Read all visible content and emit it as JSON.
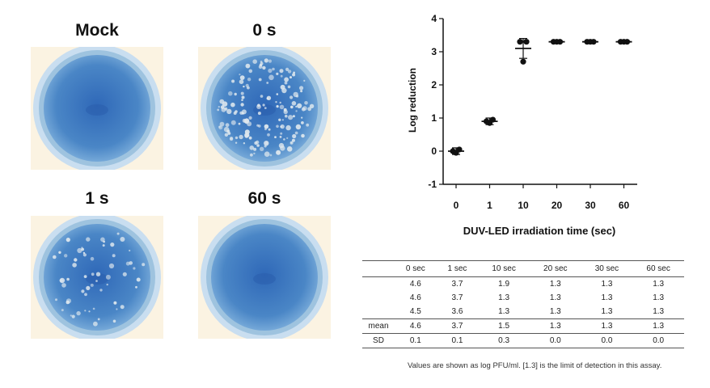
{
  "wells": [
    {
      "label": "Mock",
      "plaques": 0
    },
    {
      "label": "0 s",
      "plaques": 160
    },
    {
      "label": "1 s",
      "plaques": 60
    },
    {
      "label": "60 s",
      "plaques": 0
    }
  ],
  "colors": {
    "well_blue": "#4a86c6",
    "plaque": "#dfe8ee",
    "rim": "#9ec3df"
  },
  "chart_data": {
    "type": "scatter",
    "xlabel": "DUV-LED irradiation time (sec)",
    "ylabel": "Log reduction",
    "categories": [
      "0",
      "1",
      "10",
      "20",
      "30",
      "60"
    ],
    "ylim": [
      -1,
      4
    ],
    "yticks": [
      -1,
      0,
      1,
      2,
      3,
      4
    ],
    "points": [
      [
        0.0,
        0.05,
        -0.05
      ],
      [
        0.9,
        0.95,
        0.85
      ],
      [
        3.3,
        3.3,
        2.7
      ],
      [
        3.3,
        3.3,
        3.3
      ],
      [
        3.3,
        3.3,
        3.3
      ],
      [
        3.3,
        3.3,
        3.3
      ]
    ],
    "mean": [
      0.0,
      0.9,
      3.1,
      3.3,
      3.3,
      3.3
    ],
    "error": [
      0.1,
      0.1,
      0.3,
      0.0,
      0.0,
      0.0
    ]
  },
  "table": {
    "columns": [
      "",
      "0 sec",
      "1 sec",
      "10 sec",
      "20 sec",
      "30 sec",
      "60 sec"
    ],
    "rows": [
      [
        "",
        "4.6",
        "3.7",
        "1.9",
        "1.3",
        "1.3",
        "1.3"
      ],
      [
        "",
        "4.6",
        "3.7",
        "1.3",
        "1.3",
        "1.3",
        "1.3"
      ],
      [
        "",
        "4.5",
        "3.6",
        "1.3",
        "1.3",
        "1.3",
        "1.3"
      ],
      [
        "mean",
        "4.6",
        "3.7",
        "1.5",
        "1.3",
        "1.3",
        "1.3"
      ],
      [
        "SD",
        "0.1",
        "0.1",
        "0.3",
        "0.0",
        "0.0",
        "0.0"
      ]
    ],
    "note": "Values are shown as log PFU/ml. [1.3] is the limit of detection in this assay."
  }
}
